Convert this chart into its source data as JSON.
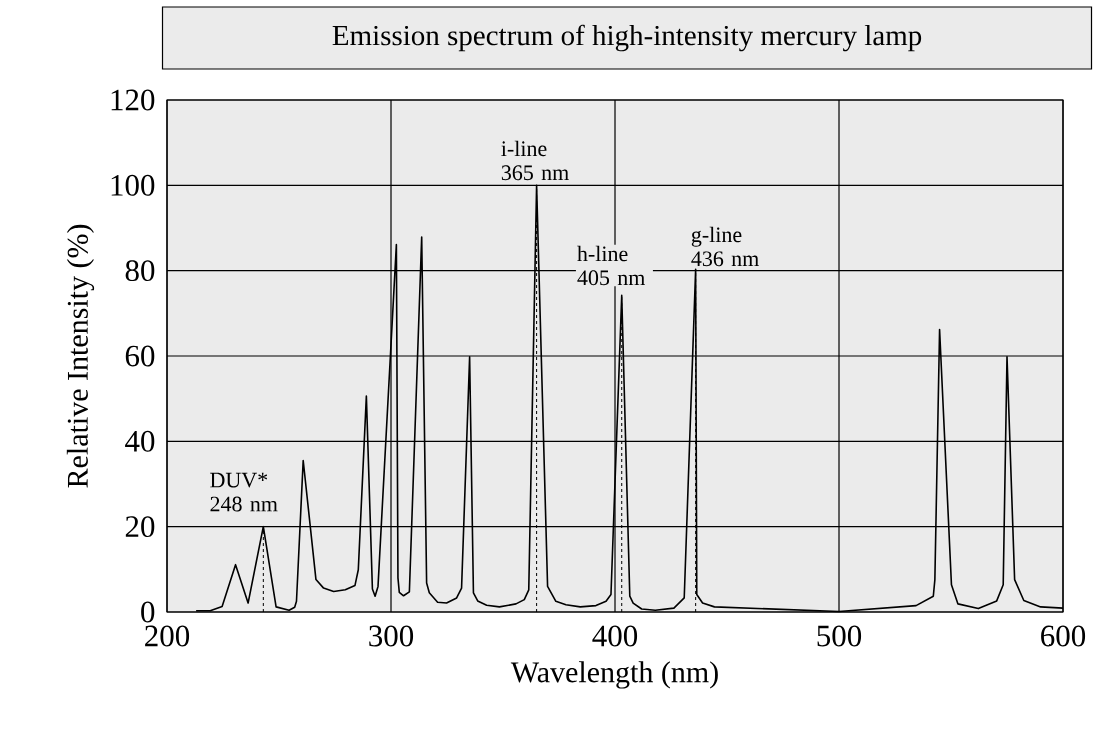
{
  "chart_data": {
    "type": "line",
    "title": "Emission spectrum of high-intensity mercury lamp",
    "xlabel": "Wavelength (nm)",
    "ylabel": "Relative Intensity (%)",
    "xlim": [
      200,
      600
    ],
    "ylim": [
      0,
      120
    ],
    "xticks": [
      200,
      300,
      400,
      500,
      600
    ],
    "yticks": [
      0,
      20,
      40,
      60,
      80,
      100,
      120
    ],
    "grid": true,
    "marker": "none",
    "line_style": "solid",
    "series": [
      {
        "color": "#000000",
        "x": [
          213,
          219.3,
          224.6,
          230.6,
          236.2,
          243,
          248.7,
          254.5,
          257,
          257.8,
          260.8,
          266.5,
          269.9,
          274.4,
          279.6,
          283.9,
          285.4,
          289,
          291.7,
          292.9,
          294.2,
          302.4,
          303.1,
          303.7,
          305.6,
          308.2,
          313.7,
          315.9,
          317.1,
          320.8,
          324.8,
          329.3,
          331.5,
          335.1,
          336.8,
          338.7,
          342.7,
          348.4,
          355.8,
          359.5,
          361.5,
          365,
          369.9,
          373.6,
          378.1,
          384.5,
          391.5,
          396,
          398.2,
          403,
          406.6,
          408.1,
          411.9,
          418,
          426.3,
          430.9,
          436,
          436.5,
          439.1,
          444.4,
          500,
          534.4,
          542.1,
          542.8,
          544.9,
          550.2,
          553.1,
          562.2,
          570.4,
          573.3,
          575,
          578.4,
          582.5,
          590,
          600
        ],
        "values": [
          0.3,
          0.3,
          1.3,
          11.1,
          2.1,
          20,
          1.2,
          0.4,
          1.1,
          2.5,
          35.5,
          7.6,
          5.6,
          4.8,
          5.2,
          6.2,
          9.9,
          50.6,
          5.4,
          3.7,
          6.0,
          86.1,
          8.0,
          4.6,
          3.8,
          4.7,
          87.9,
          6.8,
          4.5,
          2.3,
          2.1,
          3.3,
          5.6,
          59.8,
          4.5,
          2.6,
          1.6,
          1.2,
          1.9,
          2.9,
          5.2,
          100,
          6.0,
          2.5,
          1.7,
          1.2,
          1.5,
          2.5,
          4.1,
          74.2,
          3.7,
          2.1,
          0.7,
          0.4,
          0.9,
          3.3,
          80.3,
          4.1,
          2.1,
          1.2,
          0.1,
          1.5,
          3.7,
          7.6,
          66.2,
          6.4,
          1.9,
          0.8,
          2.6,
          6.4,
          59.8,
          7.6,
          2.7,
          1.2,
          0.9
        ]
      },
      {
        "color": "#000000",
        "line_style": "dashed",
        "x": [
          243,
          243,
          null,
          365,
          365,
          null,
          403,
          403,
          null,
          436,
          436
        ],
        "values": [
          0,
          20,
          null,
          0,
          100,
          null,
          0,
          74.2,
          null,
          0,
          80.3
        ]
      }
    ],
    "annotations": [
      {
        "text": "DUV* 248 nm",
        "x": 243,
        "y": 20
      },
      {
        "text": "i-line 365 nm",
        "x": 365,
        "y": 100
      },
      {
        "text": "h-line 405 nm",
        "x": 403,
        "y": 74.2
      },
      {
        "text": "g-line 436 nm",
        "x": 436,
        "y": 80.3
      }
    ]
  }
}
